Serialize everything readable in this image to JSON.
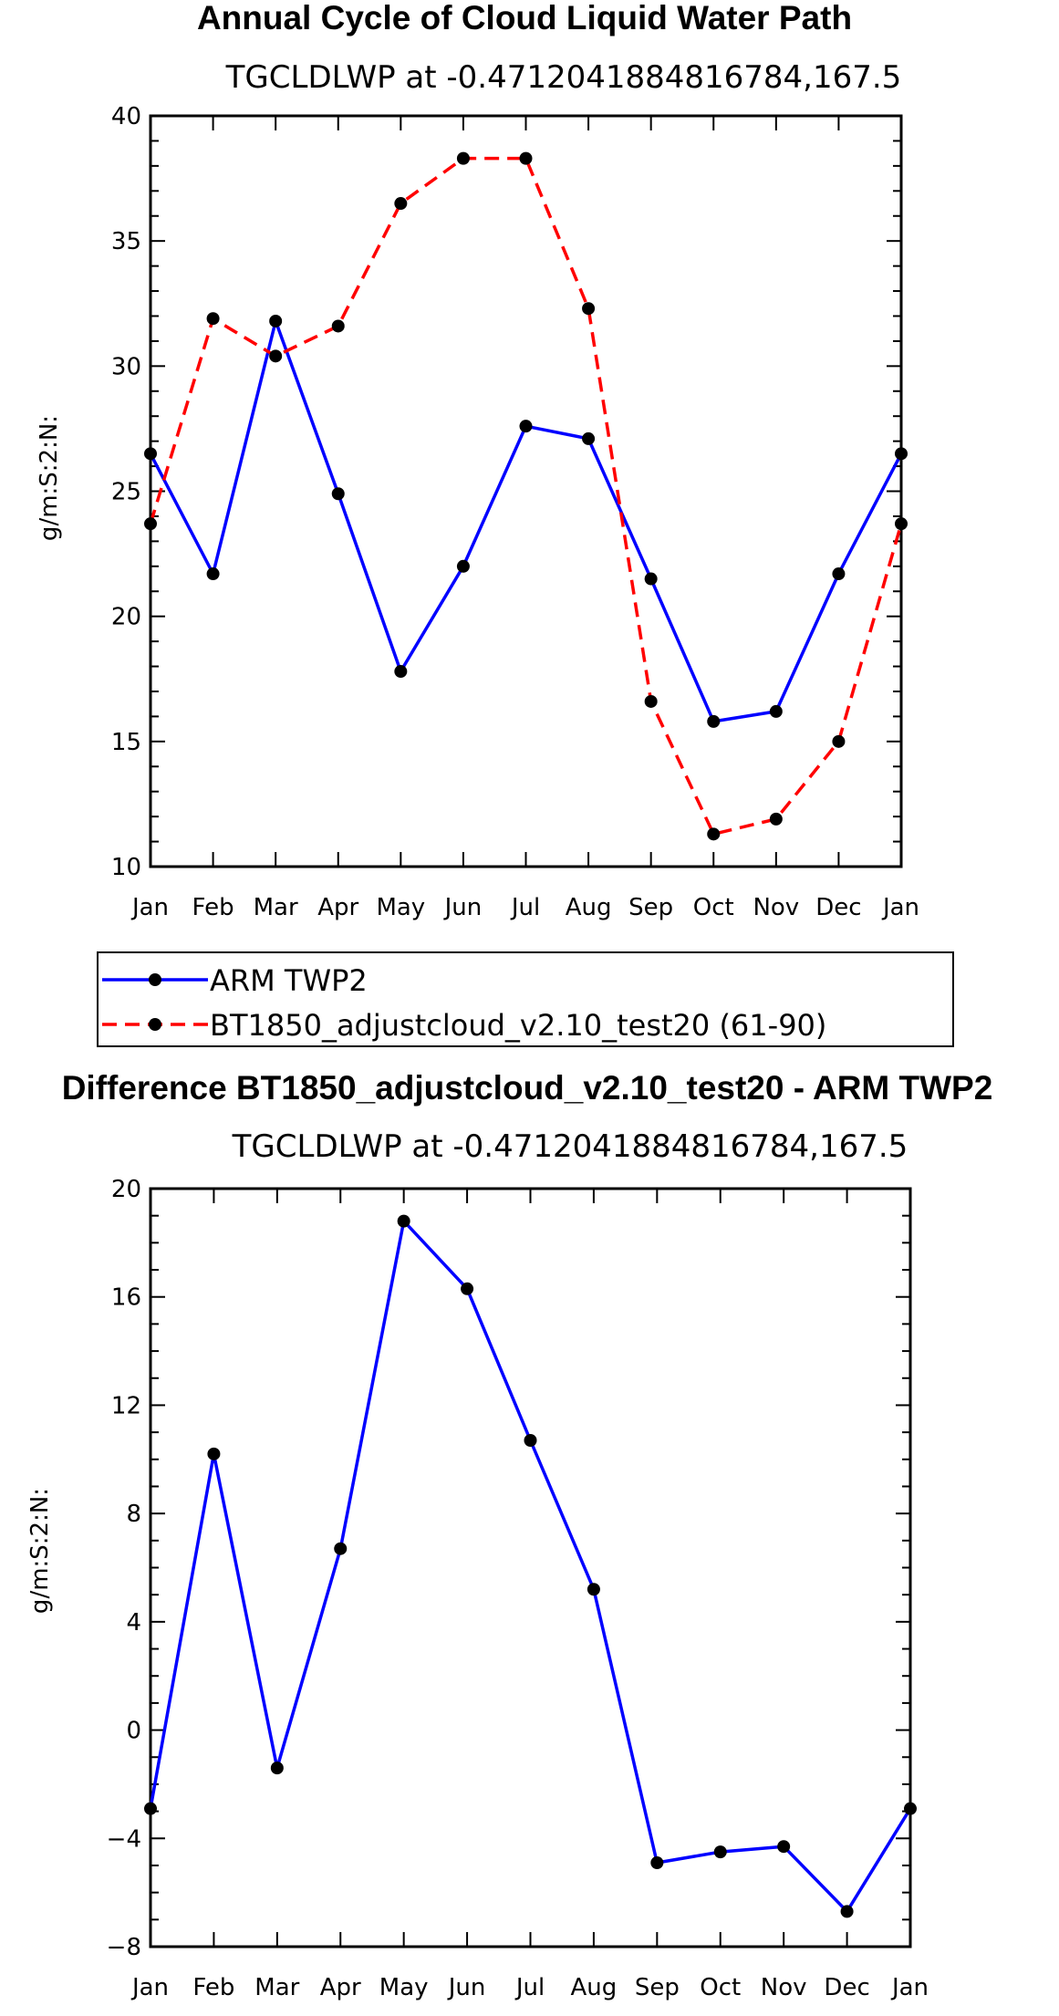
{
  "chart_data": [
    {
      "type": "line",
      "title": "Annual Cycle of Cloud Liquid Water Path",
      "subtitle": "TGCLDLWP at -0.4712041884816784,167.5",
      "xlabel": "",
      "ylabel": "g/m:S:2:N:",
      "categories": [
        "Jan",
        "Feb",
        "Mar",
        "Apr",
        "May",
        "Jun",
        "Jul",
        "Aug",
        "Sep",
        "Oct",
        "Nov",
        "Dec",
        "Jan"
      ],
      "ylim": [
        10,
        40
      ],
      "yticks": [
        "10",
        "15",
        "20",
        "25",
        "30",
        "35",
        "40"
      ],
      "series": [
        {
          "name": "ARM TWP2",
          "color": "#0000ff",
          "dash": "solid",
          "values": [
            26.5,
            21.7,
            31.8,
            24.9,
            17.8,
            22.0,
            27.6,
            27.1,
            21.5,
            15.8,
            16.2,
            21.7,
            26.5
          ]
        },
        {
          "name": "BT1850_adjustcloud_v2.10_test20 (61-90)",
          "color": "#ff0000",
          "dash": "dashed",
          "values": [
            23.7,
            31.9,
            30.4,
            31.6,
            36.5,
            38.3,
            38.3,
            32.3,
            16.6,
            11.3,
            11.9,
            15.0,
            23.7
          ]
        }
      ],
      "legend": "below"
    },
    {
      "type": "line",
      "title": "Difference BT1850_adjustcloud_v2.10_test20 - ARM TWP2",
      "subtitle": "TGCLDLWP at -0.4712041884816784,167.5",
      "xlabel": "",
      "ylabel": "g/m:S:2:N:",
      "categories": [
        "Jan",
        "Feb",
        "Mar",
        "Apr",
        "May",
        "Jun",
        "Jul",
        "Aug",
        "Sep",
        "Oct",
        "Nov",
        "Dec",
        "Jan"
      ],
      "ylim": [
        -8,
        20
      ],
      "yticks": [
        "-8",
        "-4",
        "0",
        "4",
        "8",
        "12",
        "16",
        "20"
      ],
      "series": [
        {
          "name": "Difference",
          "color": "#0000ff",
          "dash": "solid",
          "values": [
            -2.9,
            10.2,
            -1.4,
            6.7,
            18.8,
            16.3,
            10.7,
            5.2,
            -4.9,
            -4.5,
            -4.3,
            -6.7,
            -2.9
          ]
        }
      ]
    }
  ]
}
